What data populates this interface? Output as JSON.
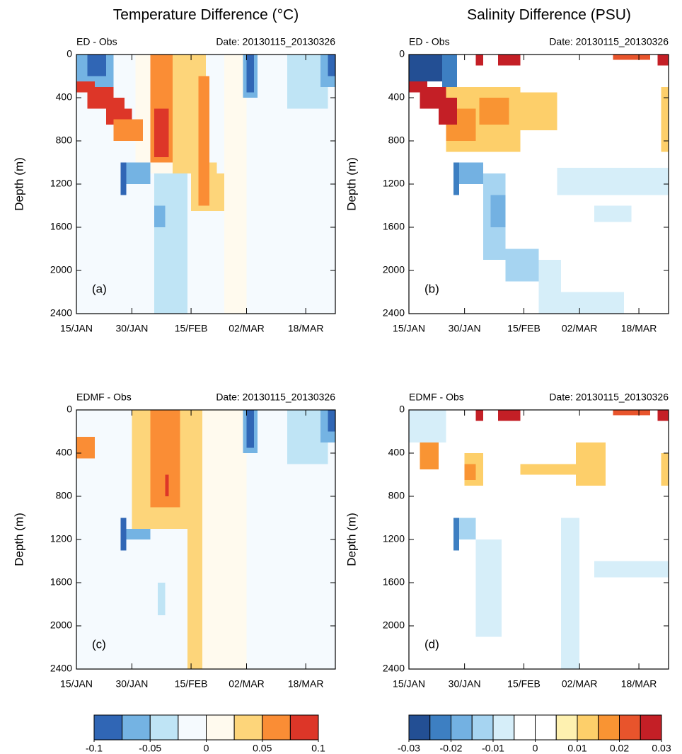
{
  "titles": [
    "Temperature Difference (°C)",
    "Salinity Difference (PSU)"
  ],
  "colorbars": [
    {
      "colors": [
        "#3066b5",
        "#74b3e3",
        "#bfe4f5",
        "#f5fafe",
        "#fffaee",
        "#fdd57a",
        "#fa8d35",
        "#dd3628"
      ],
      "clim": [
        -0.1,
        0.1
      ],
      "ticks": [
        -0.1,
        -0.05,
        0,
        0.05,
        0.1
      ]
    },
    {
      "colors": [
        "#234f94",
        "#3d7fc2",
        "#73b1e2",
        "#a6d4f1",
        "#d6eef9",
        "#ffffff",
        "#ffffff",
        "#fef1b0",
        "#fdcf6a",
        "#f99433",
        "#e8542c",
        "#c41f26"
      ],
      "clim": [
        -0.03,
        0.03
      ],
      "ticks": [
        -0.03,
        -0.02,
        -0.01,
        0,
        0.01,
        0.02,
        0.03
      ]
    }
  ],
  "chart_data": [
    {
      "type": "heatmap",
      "colorbar": 0,
      "subtitle": "ED - Obs",
      "date": "Date: 20130115_20130326",
      "panel_label": "(a)",
      "y_label": "Depth (m)",
      "xlim": [
        0,
        70
      ],
      "xticks": [
        {
          "value": 0,
          "label": "15/JAN"
        },
        {
          "value": 15,
          "label": "30/JAN"
        },
        {
          "value": 31,
          "label": "15/FEB"
        },
        {
          "value": 46,
          "label": "02/MAR"
        },
        {
          "value": 62,
          "label": "18/MAR"
        }
      ],
      "ylim": [
        0,
        2400
      ],
      "y_reversed": true,
      "yticks": [
        0,
        400,
        800,
        1200,
        1600,
        2000,
        2400
      ],
      "cells": [
        [
          0,
          70,
          0,
          2400,
          -0.01
        ],
        [
          40,
          46,
          0,
          2400,
          0.01
        ],
        [
          16,
          28,
          0,
          1100,
          0.01
        ],
        [
          0,
          10,
          0,
          300,
          -0.06
        ],
        [
          3,
          8,
          0,
          200,
          -0.09
        ],
        [
          0,
          5,
          250,
          350,
          0.09
        ],
        [
          3,
          10,
          300,
          500,
          0.09
        ],
        [
          8,
          13,
          400,
          650,
          0.09
        ],
        [
          12,
          15,
          500,
          700,
          0.09
        ],
        [
          10,
          18,
          600,
          800,
          0.06
        ],
        [
          20,
          26,
          0,
          1000,
          0.06
        ],
        [
          21,
          25,
          500,
          950,
          0.09
        ],
        [
          26,
          35,
          0,
          1100,
          0.04
        ],
        [
          31,
          38,
          1000,
          1450,
          0.04
        ],
        [
          35,
          40,
          1100,
          1450,
          0.04
        ],
        [
          33,
          36,
          200,
          1400,
          0.06
        ],
        [
          12,
          20,
          1000,
          1200,
          0.01
        ],
        [
          12,
          13.5,
          1000,
          1300,
          -0.09
        ],
        [
          13.5,
          20,
          1000,
          1200,
          -0.06
        ],
        [
          21,
          30,
          1100,
          2400,
          -0.04
        ],
        [
          21,
          24,
          1400,
          1600,
          -0.06
        ],
        [
          57,
          68,
          0,
          500,
          -0.04
        ],
        [
          45,
          49,
          0,
          400,
          -0.06
        ],
        [
          46,
          48,
          0,
          350,
          -0.09
        ],
        [
          66,
          70,
          0,
          300,
          -0.06
        ],
        [
          68,
          70,
          0,
          200,
          -0.09
        ]
      ]
    },
    {
      "type": "heatmap",
      "colorbar": 1,
      "subtitle": "ED - Obs",
      "date": "Date: 20130115_20130326",
      "panel_label": "(b)",
      "y_label": "Depth (m)",
      "xlim": [
        0,
        70
      ],
      "xticks": [
        {
          "value": 0,
          "label": "15/JAN"
        },
        {
          "value": 15,
          "label": "30/JAN"
        },
        {
          "value": 31,
          "label": "15/FEB"
        },
        {
          "value": 46,
          "label": "02/MAR"
        },
        {
          "value": 62,
          "label": "18/MAR"
        }
      ],
      "ylim": [
        0,
        2400
      ],
      "y_reversed": true,
      "yticks": [
        0,
        400,
        800,
        1200,
        1600,
        2000,
        2400
      ],
      "cells": [
        [
          0,
          70,
          0,
          2400,
          0
        ],
        [
          10,
          30,
          300,
          900,
          0.012
        ],
        [
          30,
          40,
          350,
          700,
          0.012
        ],
        [
          19,
          27,
          400,
          650,
          0.017
        ],
        [
          10,
          18,
          500,
          800,
          0.017
        ],
        [
          0,
          10,
          0,
          250,
          -0.028
        ],
        [
          9,
          13,
          0,
          300,
          -0.022
        ],
        [
          0,
          5,
          250,
          350,
          0.028
        ],
        [
          3,
          10,
          300,
          500,
          0.028
        ],
        [
          8,
          13,
          400,
          650,
          0.028
        ],
        [
          18,
          20,
          0,
          100,
          0.028
        ],
        [
          24,
          30,
          0,
          100,
          0.028
        ],
        [
          55,
          65,
          0,
          50,
          0.022
        ],
        [
          67,
          70,
          0,
          100,
          0.028
        ],
        [
          68,
          70,
          300,
          900,
          0.012
        ],
        [
          40,
          70,
          1050,
          1300,
          -0.008
        ],
        [
          50,
          60,
          1400,
          1550,
          -0.008
        ],
        [
          35,
          41,
          1900,
          2400,
          -0.008
        ],
        [
          41,
          58,
          2200,
          2400,
          -0.008
        ],
        [
          26,
          35,
          1800,
          2100,
          -0.012
        ],
        [
          20,
          26,
          1100,
          1900,
          -0.015
        ],
        [
          22,
          26,
          1300,
          1600,
          -0.018
        ],
        [
          12,
          13.5,
          1000,
          1300,
          -0.022
        ],
        [
          13.5,
          20,
          1000,
          1200,
          -0.018
        ]
      ]
    },
    {
      "type": "heatmap",
      "colorbar": 0,
      "subtitle": "EDMF - Obs",
      "date": "Date: 20130115_20130326",
      "panel_label": "(c)",
      "y_label": "Depth (m)",
      "xlim": [
        0,
        70
      ],
      "xticks": [
        {
          "value": 0,
          "label": "15/JAN"
        },
        {
          "value": 15,
          "label": "30/JAN"
        },
        {
          "value": 31,
          "label": "15/FEB"
        },
        {
          "value": 46,
          "label": "02/MAR"
        },
        {
          "value": 62,
          "label": "18/MAR"
        }
      ],
      "ylim": [
        0,
        2400
      ],
      "y_reversed": true,
      "yticks": [
        0,
        400,
        800,
        1200,
        1600,
        2000,
        2400
      ],
      "cells": [
        [
          0,
          70,
          0,
          2400,
          -0.01
        ],
        [
          34,
          46,
          0,
          2400,
          0.01
        ],
        [
          15,
          30,
          0,
          1100,
          0.04
        ],
        [
          20,
          28,
          0,
          900,
          0.06
        ],
        [
          24,
          25,
          600,
          800,
          0.09
        ],
        [
          30,
          34,
          0,
          2400,
          0.04
        ],
        [
          0,
          5,
          250,
          450,
          0.06
        ],
        [
          12,
          13.5,
          1000,
          1300,
          -0.09
        ],
        [
          13.5,
          20,
          1100,
          1200,
          -0.06
        ],
        [
          22,
          24,
          1600,
          1900,
          -0.04
        ],
        [
          57,
          68,
          0,
          500,
          -0.04
        ],
        [
          45,
          49,
          0,
          400,
          -0.06
        ],
        [
          46,
          48,
          0,
          350,
          -0.09
        ],
        [
          66,
          70,
          0,
          300,
          -0.06
        ],
        [
          68,
          70,
          0,
          200,
          -0.09
        ]
      ]
    },
    {
      "type": "heatmap",
      "colorbar": 1,
      "subtitle": "EDMF - Obs",
      "date": "Date: 20130115_20130326",
      "panel_label": "(d)",
      "y_label": "Depth (m)",
      "xlim": [
        0,
        70
      ],
      "xticks": [
        {
          "value": 0,
          "label": "15/JAN"
        },
        {
          "value": 15,
          "label": "30/JAN"
        },
        {
          "value": 31,
          "label": "15/FEB"
        },
        {
          "value": 46,
          "label": "02/MAR"
        },
        {
          "value": 62,
          "label": "18/MAR"
        }
      ],
      "ylim": [
        0,
        2400
      ],
      "y_reversed": true,
      "yticks": [
        0,
        400,
        800,
        1200,
        1600,
        2000,
        2400
      ],
      "cells": [
        [
          0,
          70,
          0,
          2400,
          0
        ],
        [
          0,
          10,
          0,
          300,
          -0.008
        ],
        [
          3,
          8,
          300,
          550,
          0.017
        ],
        [
          15,
          20,
          400,
          700,
          0.012
        ],
        [
          15,
          18,
          500,
          650,
          0.017
        ],
        [
          30,
          45,
          500,
          600,
          0.012
        ],
        [
          45,
          53,
          300,
          700,
          0.012
        ],
        [
          18,
          20,
          0,
          100,
          0.028
        ],
        [
          24,
          30,
          0,
          100,
          0.028
        ],
        [
          55,
          65,
          0,
          50,
          0.022
        ],
        [
          67,
          70,
          0,
          100,
          0.028
        ],
        [
          68,
          70,
          400,
          700,
          0.012
        ],
        [
          12,
          13.5,
          1000,
          1300,
          -0.022
        ],
        [
          13.5,
          18,
          1000,
          1200,
          -0.015
        ],
        [
          18,
          25,
          1200,
          2100,
          -0.008
        ],
        [
          41,
          46,
          1000,
          2400,
          -0.008
        ],
        [
          50,
          70,
          1400,
          1550,
          -0.008
        ]
      ]
    }
  ]
}
